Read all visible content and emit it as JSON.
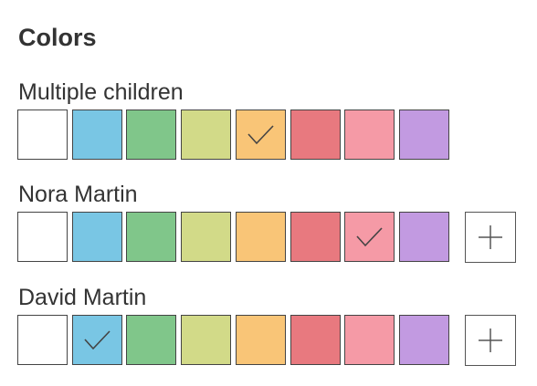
{
  "title": "Colors",
  "palette": [
    "#ffffff",
    "#79c6e4",
    "#80c68a",
    "#d2da88",
    "#f9c577",
    "#e8797f",
    "#f59aa6",
    "#c29ae1"
  ],
  "check_color": "#444444",
  "sections": [
    {
      "label": "Multiple children",
      "selected_index": 4,
      "has_add_button": false
    },
    {
      "label": "Nora Martin",
      "selected_index": 6,
      "has_add_button": true
    },
    {
      "label": "David Martin",
      "selected_index": 1,
      "has_add_button": true
    }
  ]
}
